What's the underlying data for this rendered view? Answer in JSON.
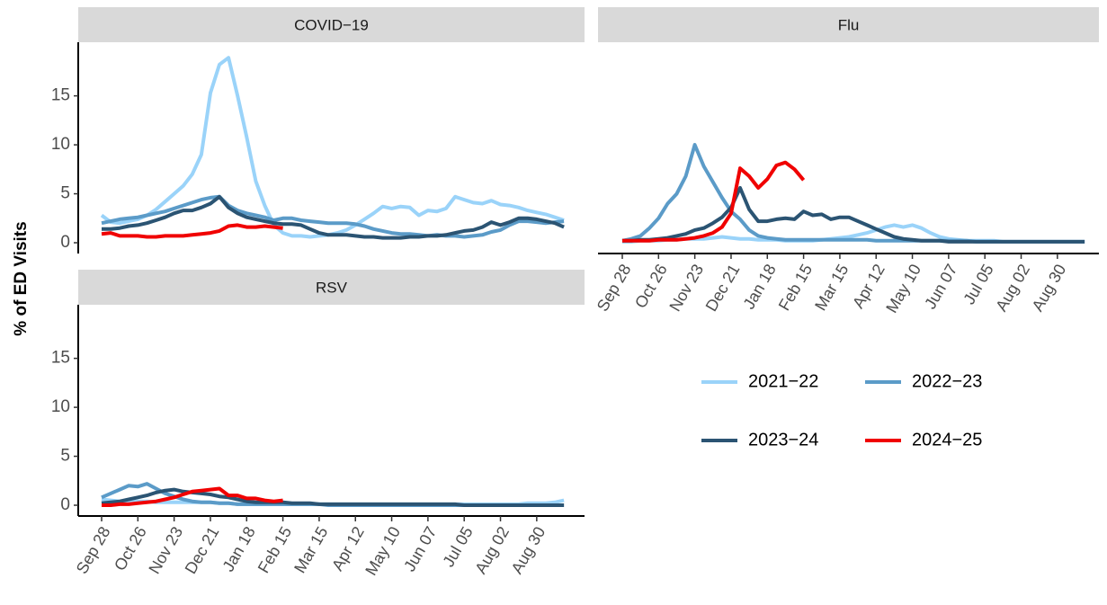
{
  "y_label": "% of ED Visits",
  "chart_data": [
    {
      "type": "line",
      "title": "COVID−19",
      "ylim": [
        -1.1,
        20.2
      ],
      "yticks": [
        0,
        5,
        10,
        15
      ],
      "series": [
        {
          "name": "2021−22",
          "color": "#9ad3f9",
          "values": [
            2.8,
            2.1,
            2.0,
            2.2,
            2.4,
            2.8,
            3.4,
            4.2,
            5.0,
            5.8,
            7.0,
            9.0,
            15.3,
            18.2,
            18.9,
            15.0,
            10.8,
            6.3,
            3.8,
            1.8,
            1.0,
            0.7,
            0.7,
            0.6,
            0.7,
            0.8,
            1.0,
            1.3,
            1.8,
            2.4,
            3.0,
            3.7,
            3.5,
            3.7,
            3.6,
            2.8,
            3.3,
            3.2,
            3.5,
            4.7,
            4.4,
            4.1,
            4.0,
            4.3,
            3.9,
            3.8,
            3.6,
            3.3,
            3.1,
            2.9,
            2.6,
            2.3
          ]
        },
        {
          "name": "2022−23",
          "color": "#5b9bc8",
          "values": [
            2.0,
            2.2,
            2.4,
            2.5,
            2.6,
            2.8,
            3.0,
            3.2,
            3.5,
            3.8,
            4.1,
            4.4,
            4.6,
            4.7,
            3.8,
            3.3,
            3.0,
            2.8,
            2.6,
            2.3,
            2.5,
            2.5,
            2.3,
            2.2,
            2.1,
            2.0,
            2.0,
            2.0,
            1.9,
            1.7,
            1.4,
            1.2,
            1.0,
            0.9,
            0.9,
            0.8,
            0.7,
            0.8,
            0.7,
            0.7,
            0.6,
            0.7,
            0.8,
            1.1,
            1.3,
            1.8,
            2.2,
            2.2,
            2.1,
            2.0,
            2.1,
            2.2
          ]
        },
        {
          "name": "2023−24",
          "color": "#2b5473",
          "values": [
            1.4,
            1.4,
            1.5,
            1.7,
            1.8,
            2.0,
            2.3,
            2.6,
            3.0,
            3.3,
            3.3,
            3.6,
            4.0,
            4.7,
            3.6,
            3.0,
            2.6,
            2.4,
            2.2,
            2.0,
            1.9,
            1.9,
            1.8,
            1.4,
            1.0,
            0.8,
            0.8,
            0.8,
            0.7,
            0.6,
            0.6,
            0.5,
            0.5,
            0.5,
            0.6,
            0.6,
            0.7,
            0.7,
            0.8,
            1.0,
            1.2,
            1.3,
            1.6,
            2.1,
            1.8,
            2.1,
            2.5,
            2.5,
            2.4,
            2.2,
            2.0,
            1.6
          ]
        },
        {
          "name": "2024−25",
          "color": "#f00000",
          "values": [
            0.9,
            1.0,
            0.7,
            0.7,
            0.7,
            0.6,
            0.6,
            0.7,
            0.7,
            0.7,
            0.8,
            0.9,
            1.0,
            1.2,
            1.7,
            1.8,
            1.6,
            1.6,
            1.7,
            1.6,
            1.5,
            null,
            null,
            null,
            null,
            null,
            null,
            null,
            null,
            null,
            null,
            null,
            null,
            null,
            null,
            null,
            null,
            null,
            null,
            null,
            null,
            null,
            null,
            null,
            null,
            null,
            null,
            null,
            null,
            null,
            null,
            null
          ]
        }
      ]
    },
    {
      "type": "line",
      "title": "Flu",
      "ylim": [
        -1.1,
        20.2
      ],
      "categories": [
        "Sep 28",
        null,
        null,
        null,
        "Oct 26",
        null,
        null,
        null,
        "Nov 23",
        null,
        null,
        null,
        "Dec 21",
        null,
        null,
        null,
        "Jan 18",
        null,
        null,
        null,
        "Feb 15",
        null,
        null,
        null,
        "Mar 15",
        null,
        null,
        null,
        "Apr 12",
        null,
        null,
        null,
        "May 10",
        null,
        null,
        null,
        "Jun 07",
        null,
        null,
        null,
        "Jul 05",
        null,
        null,
        null,
        "Aug 02",
        null,
        null,
        null,
        "Aug 30",
        null,
        null,
        null
      ],
      "legend": "right",
      "series": [
        {
          "name": "2021−22",
          "color": "#9ad3f9",
          "values": [
            0.1,
            0.1,
            0.2,
            0.2,
            0.2,
            0.3,
            0.3,
            0.4,
            0.4,
            0.4,
            0.5,
            0.6,
            0.5,
            0.4,
            0.4,
            0.3,
            0.3,
            0.3,
            0.2,
            0.2,
            0.2,
            0.2,
            0.3,
            0.4,
            0.5,
            0.6,
            0.8,
            1.0,
            1.3,
            1.6,
            1.8,
            1.6,
            1.8,
            1.5,
            1.0,
            0.6,
            0.4,
            0.3,
            0.2,
            0.2,
            0.2,
            0.2,
            0.1,
            0.1,
            0.1,
            0.1,
            0.1,
            0.1,
            0.1,
            0.1,
            0.1,
            0.1
          ]
        },
        {
          "name": "2022−23",
          "color": "#5b9bc8",
          "values": [
            0.2,
            0.4,
            0.7,
            1.5,
            2.5,
            4.0,
            5.0,
            6.8,
            10.0,
            7.8,
            6.2,
            4.6,
            3.2,
            2.4,
            1.3,
            0.7,
            0.5,
            0.4,
            0.3,
            0.3,
            0.3,
            0.3,
            0.3,
            0.3,
            0.3,
            0.3,
            0.3,
            0.3,
            0.2,
            0.2,
            0.2,
            0.2,
            0.2,
            0.2,
            0.2,
            0.2,
            0.2,
            0.2,
            0.2,
            0.1,
            0.1,
            0.1,
            0.1,
            0.1,
            0.1,
            0.1,
            0.1,
            0.1,
            0.1,
            0.1,
            0.1,
            0.1
          ]
        },
        {
          "name": "2023−24",
          "color": "#2b5473",
          "values": [
            0.2,
            0.2,
            0.3,
            0.3,
            0.4,
            0.5,
            0.7,
            0.9,
            1.3,
            1.5,
            2.0,
            2.6,
            3.6,
            5.6,
            3.4,
            2.2,
            2.2,
            2.4,
            2.5,
            2.4,
            3.2,
            2.8,
            2.9,
            2.4,
            2.6,
            2.6,
            2.2,
            1.8,
            1.4,
            1.0,
            0.6,
            0.4,
            0.3,
            0.2,
            0.2,
            0.2,
            0.1,
            0.1,
            0.1,
            0.1,
            0.1,
            0.1,
            0.1,
            0.1,
            0.1,
            0.1,
            0.1,
            0.1,
            0.1,
            0.1,
            0.1,
            0.1
          ]
        },
        {
          "name": "2024−25",
          "color": "#f00000",
          "values": [
            0.2,
            0.2,
            0.2,
            0.2,
            0.3,
            0.3,
            0.3,
            0.4,
            0.5,
            0.7,
            1.0,
            1.6,
            3.0,
            7.6,
            6.8,
            5.6,
            6.5,
            7.9,
            8.2,
            7.5,
            6.4,
            null,
            null,
            null,
            null,
            null,
            null,
            null,
            null,
            null,
            null,
            null,
            null,
            null,
            null,
            null,
            null,
            null,
            null,
            null,
            null,
            null,
            null,
            null,
            null,
            null,
            null,
            null,
            null,
            null,
            null,
            null
          ]
        }
      ]
    },
    {
      "type": "line",
      "title": "RSV",
      "ylim": [
        -1.1,
        20.2
      ],
      "yticks": [
        0,
        5,
        10,
        15
      ],
      "categories": [
        "Sep 28",
        null,
        null,
        null,
        "Oct 26",
        null,
        null,
        null,
        "Nov 23",
        null,
        null,
        null,
        "Dec 21",
        null,
        null,
        null,
        "Jan 18",
        null,
        null,
        null,
        "Feb 15",
        null,
        null,
        null,
        "Mar 15",
        null,
        null,
        null,
        "Apr 12",
        null,
        null,
        null,
        "May 10",
        null,
        null,
        null,
        "Jun 07",
        null,
        null,
        null,
        "Jul 05",
        null,
        null,
        null,
        "Aug 02",
        null,
        null,
        null,
        "Aug 30",
        null,
        null,
        null
      ],
      "series": [
        {
          "name": "2021−22",
          "color": "#9ad3f9",
          "values": [
            0.6,
            0.5,
            0.4,
            0.4,
            0.4,
            0.4,
            0.3,
            0.3,
            0.3,
            0.3,
            0.3,
            0.3,
            0.3,
            0.2,
            0.2,
            0.1,
            0.1,
            0.1,
            0.1,
            0.1,
            0.1,
            0.1,
            0.1,
            0.1,
            0.1,
            0.1,
            0.1,
            0.1,
            0.1,
            0.1,
            0.1,
            0.1,
            0.1,
            0.1,
            0.1,
            0.1,
            0.1,
            0.1,
            0.1,
            0.1,
            0.1,
            0.1,
            0.1,
            0.1,
            0.1,
            0.1,
            0.1,
            0.2,
            0.2,
            0.2,
            0.3,
            0.5
          ]
        },
        {
          "name": "2022−23",
          "color": "#5b9bc8",
          "values": [
            0.8,
            1.2,
            1.6,
            2.0,
            1.9,
            2.2,
            1.7,
            1.2,
            0.9,
            0.6,
            0.4,
            0.3,
            0.3,
            0.2,
            0.2,
            0.1,
            0.1,
            0.1,
            0.1,
            0.1,
            0.1,
            0.1,
            0.1,
            0.1,
            0.1,
            0,
            0,
            0,
            0,
            0,
            0,
            0,
            0,
            0,
            0,
            0,
            0,
            0,
            0,
            0,
            0,
            0,
            0,
            0,
            0,
            0,
            0,
            0,
            0,
            0,
            0,
            0
          ]
        },
        {
          "name": "2023−24",
          "color": "#2b5473",
          "values": [
            0.2,
            0.3,
            0.4,
            0.6,
            0.8,
            1.0,
            1.3,
            1.5,
            1.6,
            1.4,
            1.3,
            1.2,
            1.1,
            0.9,
            0.8,
            0.6,
            0.4,
            0.3,
            0.3,
            0.3,
            0.3,
            0.2,
            0.2,
            0.2,
            0.1,
            0.1,
            0.1,
            0.1,
            0.1,
            0.1,
            0.1,
            0.1,
            0.1,
            0.1,
            0.1,
            0.1,
            0.1,
            0.1,
            0.1,
            0.1,
            0,
            0,
            0,
            0,
            0,
            0,
            0,
            0,
            0,
            0,
            0,
            0
          ]
        },
        {
          "name": "2024−25",
          "color": "#f00000",
          "values": [
            0,
            0,
            0.1,
            0.1,
            0.2,
            0.3,
            0.4,
            0.6,
            0.8,
            1.1,
            1.4,
            1.5,
            1.6,
            1.7,
            1.0,
            1.0,
            0.7,
            0.7,
            0.5,
            0.4,
            0.5,
            null,
            null,
            null,
            null,
            null,
            null,
            null,
            null,
            null,
            null,
            null,
            null,
            null,
            null,
            null,
            null,
            null,
            null,
            null,
            null,
            null,
            null,
            null,
            null,
            null,
            null,
            null,
            null,
            null,
            null,
            null
          ]
        }
      ]
    }
  ]
}
